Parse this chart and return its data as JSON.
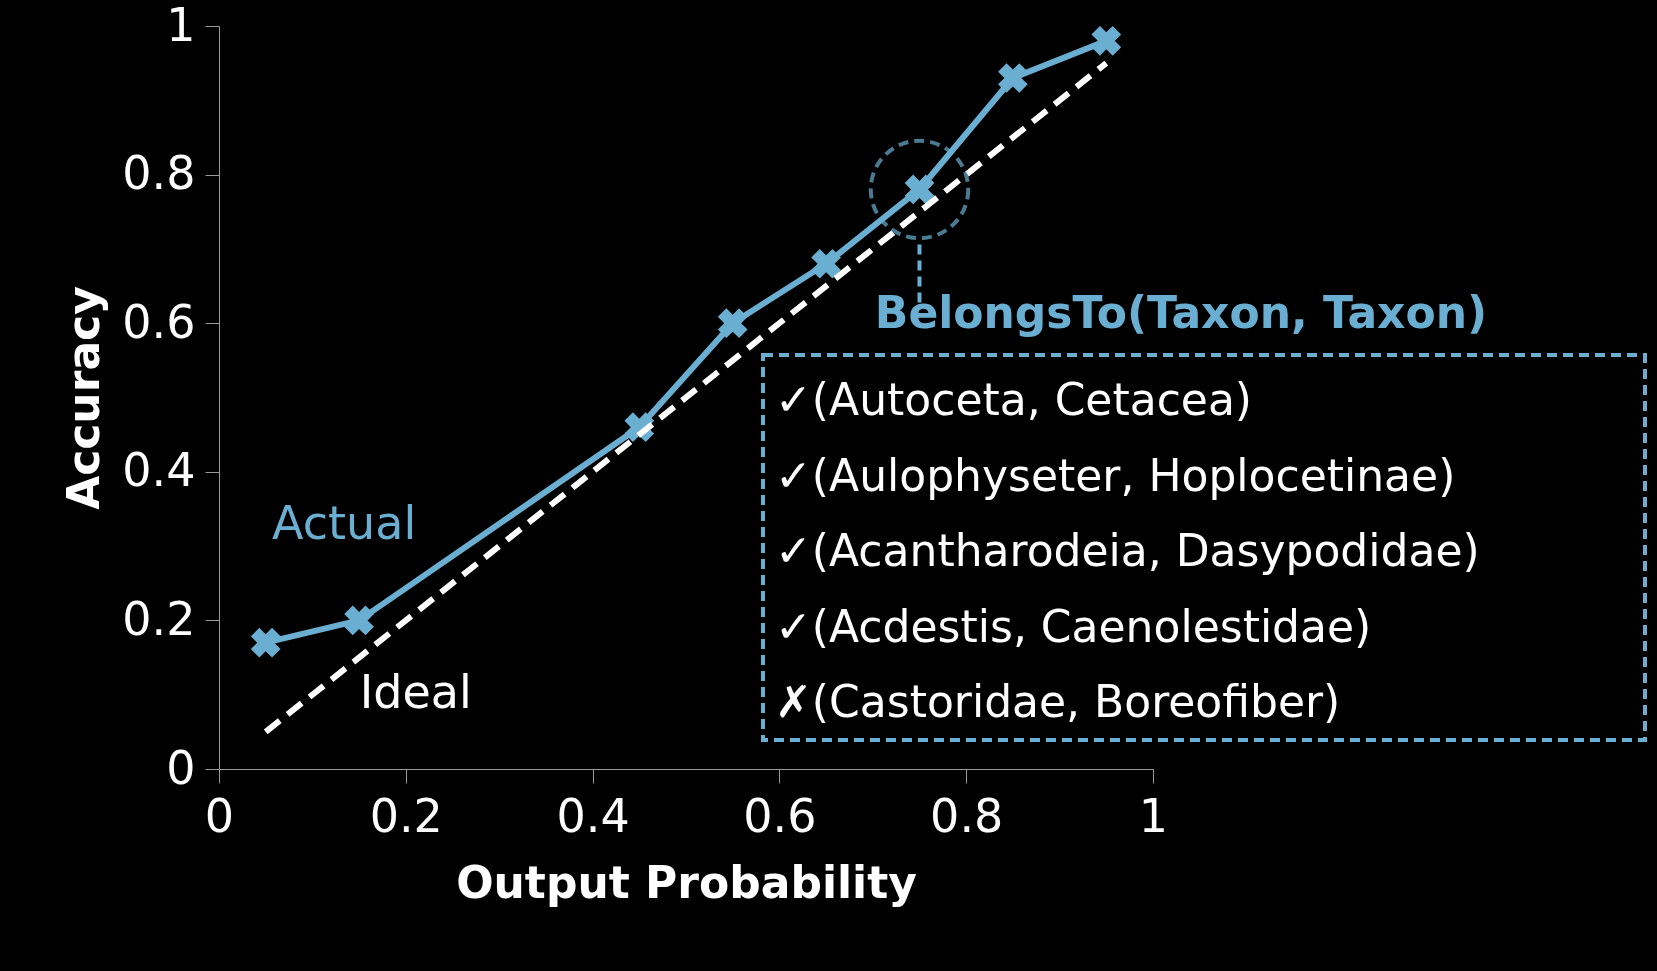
{
  "chart_data": {
    "type": "line",
    "xlabel": "Output Probability",
    "ylabel": "Accuracy",
    "xlim": [
      0,
      1
    ],
    "ylim": [
      0,
      1
    ],
    "xticks": [
      0,
      0.2,
      0.4,
      0.6,
      0.8,
      1
    ],
    "yticks": [
      0,
      0.2,
      0.4,
      0.6,
      0.8,
      1
    ],
    "grid": false,
    "series": [
      {
        "name": "Actual",
        "color": "#6aafd2",
        "marker": "cross",
        "line_style": "solid",
        "x": [
          0.05,
          0.15,
          0.45,
          0.55,
          0.65,
          0.75,
          0.85,
          0.95
        ],
        "values": [
          0.17,
          0.2,
          0.46,
          0.6,
          0.68,
          0.78,
          0.93,
          0.98
        ]
      },
      {
        "name": "Ideal",
        "color": "#ffffff",
        "marker": "none",
        "line_style": "dashed",
        "x": [
          0.05,
          0.95
        ],
        "values": [
          0.05,
          0.95
        ]
      }
    ],
    "annotations": [
      {
        "text": "BelongsTo(Taxon, Taxon)",
        "x": 0.75,
        "y": 0.78
      },
      "✓(Autoceta, Cetacea)",
      "✓(Aulophyseter, Hoplocetinae)",
      "✓(Acantharodeia, Dasypodidae)",
      "✓(Acdestis, Caenolestidae)",
      "✗(Castoridae, Boreofiber)"
    ]
  }
}
